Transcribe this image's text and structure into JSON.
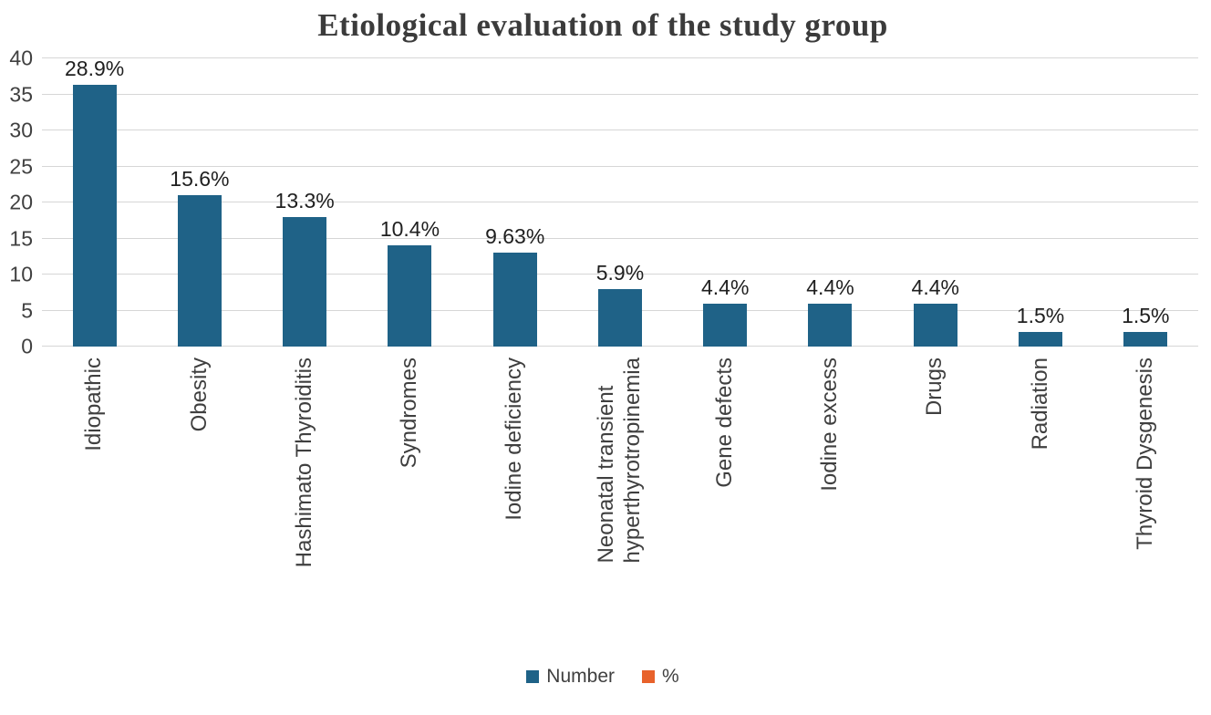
{
  "chart_data": {
    "type": "bar",
    "title": "Etiological evaluation of the study group",
    "categories": [
      "Idiopathic",
      "Obesity",
      "Hashimato Thyroiditis",
      "Syndromes",
      "Iodine deficiency",
      "Neonatal transient\nhyperthyrotropinemia",
      "Gene defects",
      "Iodine excess",
      "Drugs",
      "Radiation",
      "Thyroid Dysgenesis"
    ],
    "values": [
      39,
      21,
      18,
      14,
      13,
      8,
      6,
      6,
      6,
      2,
      2
    ],
    "bar_labels": [
      "28.9%",
      "15.6%",
      "13.3%",
      "10.4%",
      "9.63%",
      "5.9%",
      "4.4%",
      "4.4%",
      "4.4%",
      "1.5%",
      "1.5%"
    ],
    "xlabel": "",
    "ylabel": "",
    "ylim": [
      0,
      40
    ],
    "yticks": [
      0,
      5,
      10,
      15,
      20,
      25,
      30,
      35,
      40
    ],
    "grid": "horizontal",
    "bar_color": "#1F6287",
    "legend_position": "bottom",
    "legend": [
      {
        "label": "Number",
        "color": "#1F6287"
      },
      {
        "label": "%",
        "color": "#E8622B"
      }
    ]
  }
}
